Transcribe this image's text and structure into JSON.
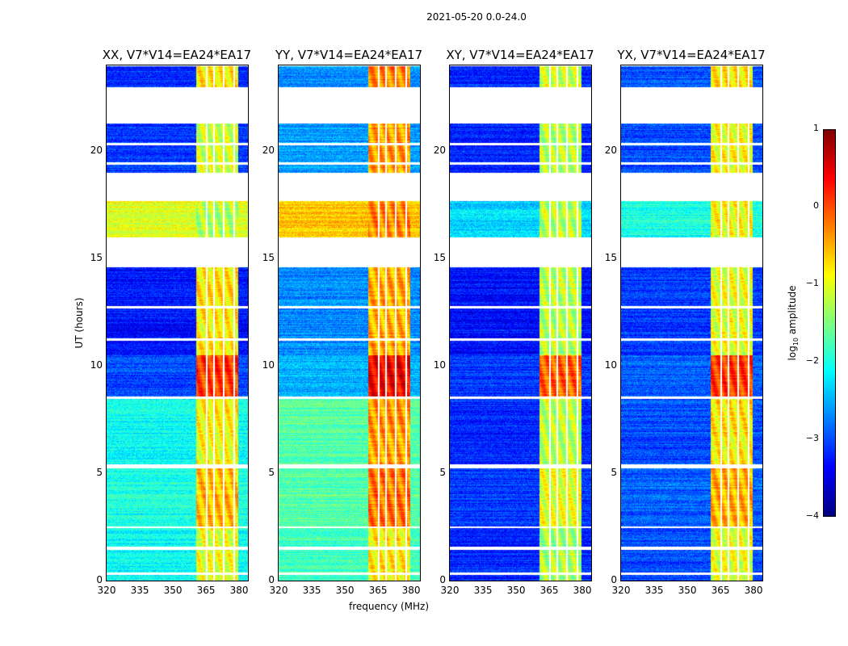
{
  "chart_data": {
    "type": "heatmap",
    "title": "2021-05-20 0.0-24.0",
    "xlabel": "frequency (MHz)",
    "ylabel": "UT (hours)",
    "xlim": [
      320,
      384
    ],
    "ylim": [
      0,
      24
    ],
    "xticks": [
      "320",
      "335",
      "350",
      "365",
      "380"
    ],
    "xtick_values": [
      320,
      335,
      350,
      365,
      380
    ],
    "yticks": [
      "0",
      "5",
      "10",
      "15",
      "20"
    ],
    "ytick_values": [
      0,
      5,
      10,
      15,
      20
    ],
    "colorbar": {
      "label_main": "log",
      "label_sub": "10",
      "label_rest": " amplitude",
      "range": [
        -4,
        1
      ],
      "ticks": [
        "−4",
        "−3",
        "−2",
        "−1",
        "0",
        "1"
      ],
      "tick_values": [
        -4,
        -3,
        -2,
        -1,
        0,
        1
      ],
      "colormap": "jet"
    },
    "band_MHz": [
      360.5,
      379.6
    ],
    "band_gaps_MHz": [
      365,
      368.5,
      373,
      377.5
    ],
    "empty_intervals_hours": [
      [
        21.3,
        23.0
      ],
      [
        17.7,
        19.0
      ],
      [
        14.6,
        16.0
      ],
      [
        2.45,
        2.55
      ],
      [
        1.45,
        1.6
      ],
      [
        0.3,
        0.4
      ],
      [
        5.25,
        5.45
      ],
      [
        8.5,
        8.6
      ],
      [
        19.4,
        19.5
      ],
      [
        20.3,
        20.4
      ],
      [
        11.2,
        11.3
      ],
      [
        12.7,
        12.8
      ]
    ],
    "panels": [
      {
        "title": "XX, V7*V14=EA24*EA17",
        "segments": [
          {
            "t": [
              0,
              2.5
            ],
            "off": -2.1,
            "in": -1.0
          },
          {
            "t": [
              2.5,
              5.25
            ],
            "off": -2.0,
            "in": -0.6
          },
          {
            "t": [
              5.45,
              8.5
            ],
            "off": -2.1,
            "in": -0.9
          },
          {
            "t": [
              8.6,
              10.5
            ],
            "off": -3.0,
            "in": 0.1
          },
          {
            "t": [
              10.5,
              14.6
            ],
            "off": -3.3,
            "in": -0.8
          },
          {
            "t": [
              16.0,
              17.7
            ],
            "off": -1.0,
            "in": -1.2
          },
          {
            "t": [
              19.0,
              21.3
            ],
            "off": -3.1,
            "in": -1.1
          },
          {
            "t": [
              23.0,
              24
            ],
            "off": -3.2,
            "in": -0.8
          }
        ]
      },
      {
        "title": "YY, V7*V14=EA24*EA17",
        "segments": [
          {
            "t": [
              0,
              2.5
            ],
            "off": -1.8,
            "in": -0.8
          },
          {
            "t": [
              2.5,
              5.25
            ],
            "off": -1.7,
            "in": -0.2
          },
          {
            "t": [
              5.45,
              8.5
            ],
            "off": -1.7,
            "in": -0.4
          },
          {
            "t": [
              8.6,
              10.5
            ],
            "off": -2.5,
            "in": 0.4
          },
          {
            "t": [
              10.5,
              14.6
            ],
            "off": -2.7,
            "in": -0.5
          },
          {
            "t": [
              16.0,
              17.7
            ],
            "off": -0.6,
            "in": -0.3
          },
          {
            "t": [
              19.0,
              21.3
            ],
            "off": -2.6,
            "in": -0.4
          },
          {
            "t": [
              23.0,
              24
            ],
            "off": -2.7,
            "in": -0.3
          }
        ]
      },
      {
        "title": "XY, V7*V14=EA24*EA17",
        "segments": [
          {
            "t": [
              0,
              2.5
            ],
            "off": -3.2,
            "in": -1.3
          },
          {
            "t": [
              2.5,
              5.25
            ],
            "off": -3.1,
            "in": -1.0
          },
          {
            "t": [
              5.45,
              8.5
            ],
            "off": -3.2,
            "in": -1.2
          },
          {
            "t": [
              8.6,
              10.5
            ],
            "off": -3.1,
            "in": -0.1
          },
          {
            "t": [
              10.5,
              14.6
            ],
            "off": -3.3,
            "in": -1.2
          },
          {
            "t": [
              16.0,
              17.7
            ],
            "off": -2.3,
            "in": -1.2
          },
          {
            "t": [
              19.0,
              21.3
            ],
            "off": -3.2,
            "in": -1.2
          },
          {
            "t": [
              23.0,
              24
            ],
            "off": -3.2,
            "in": -1.1
          }
        ]
      },
      {
        "title": "YX, V7*V14=EA24*EA17",
        "segments": [
          {
            "t": [
              0,
              2.5
            ],
            "off": -3.0,
            "in": -1.0
          },
          {
            "t": [
              2.5,
              5.25
            ],
            "off": -2.9,
            "in": -0.5
          },
          {
            "t": [
              5.45,
              8.5
            ],
            "off": -3.0,
            "in": -0.8
          },
          {
            "t": [
              8.6,
              10.5
            ],
            "off": -2.9,
            "in": 0.1
          },
          {
            "t": [
              10.5,
              14.6
            ],
            "off": -3.1,
            "in": -1.0
          },
          {
            "t": [
              16.0,
              17.7
            ],
            "off": -2.0,
            "in": -0.9
          },
          {
            "t": [
              19.0,
              21.3
            ],
            "off": -3.0,
            "in": -0.9
          },
          {
            "t": [
              23.0,
              24
            ],
            "off": -3.0,
            "in": -0.8
          }
        ]
      }
    ]
  }
}
